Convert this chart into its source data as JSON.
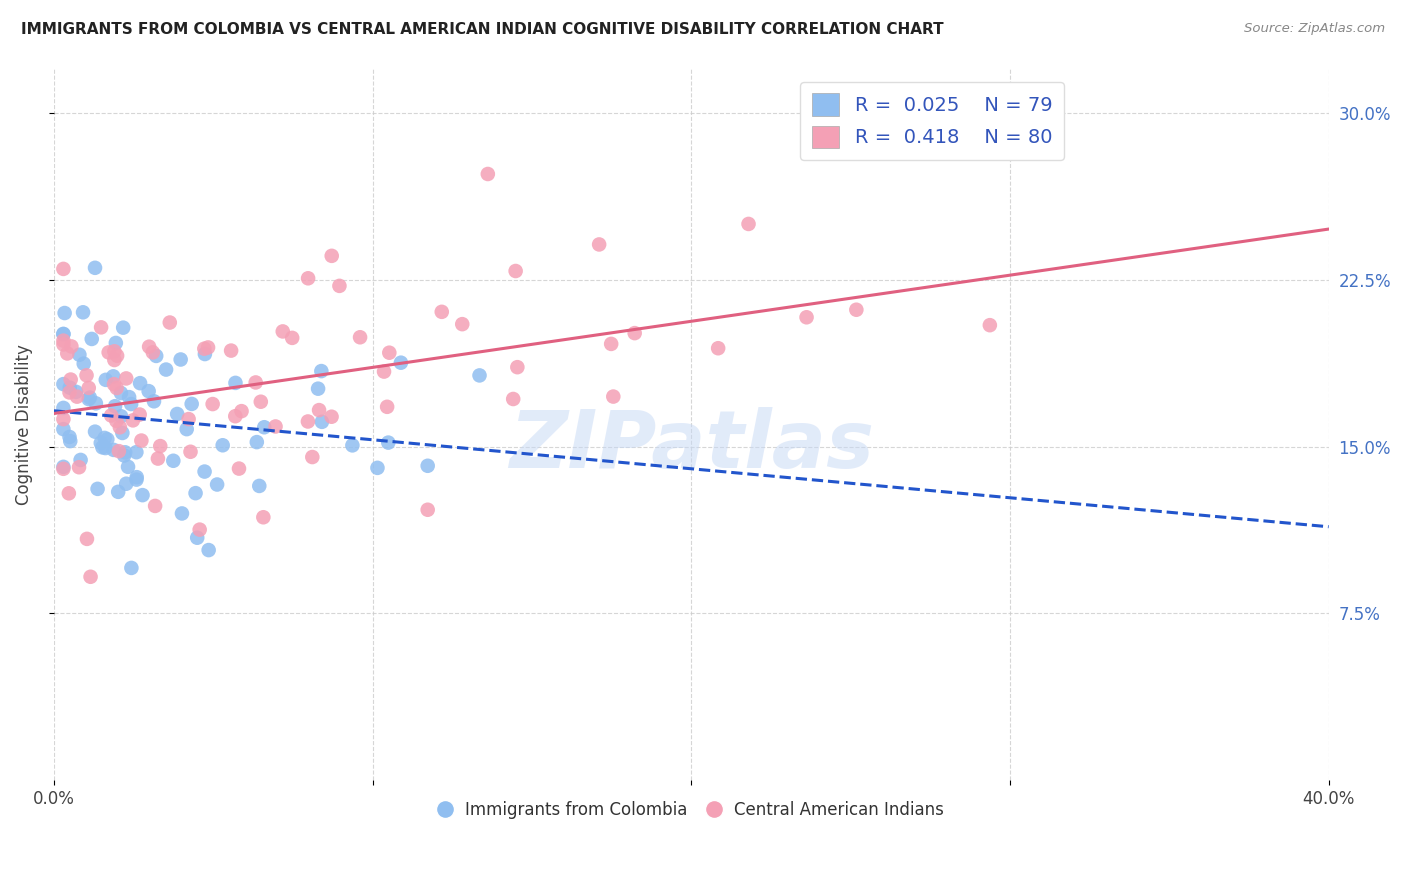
{
  "title": "IMMIGRANTS FROM COLOMBIA VS CENTRAL AMERICAN INDIAN COGNITIVE DISABILITY CORRELATION CHART",
  "source": "Source: ZipAtlas.com",
  "ylabel": "Cognitive Disability",
  "ytick_values": [
    0.075,
    0.15,
    0.225,
    0.3
  ],
  "ytick_labels": [
    "7.5%",
    "15.0%",
    "22.5%",
    "30.0%"
  ],
  "xtick_values": [
    0.0,
    0.1,
    0.2,
    0.3,
    0.4
  ],
  "xtick_labels": [
    "0.0%",
    "",
    "",
    "",
    "40.0%"
  ],
  "xlim": [
    0.0,
    0.4
  ],
  "ylim": [
    0.0,
    0.32
  ],
  "blue_r": 0.025,
  "blue_n": 79,
  "pink_r": 0.418,
  "pink_n": 80,
  "background_color": "#ffffff",
  "blue_color": "#90BEF0",
  "pink_color": "#F4A0B5",
  "blue_line_color": "#2255CC",
  "pink_line_color": "#E06080",
  "watermark_text": "ZIPatlas",
  "grid_color": "#CCCCCC",
  "right_tick_color": "#4472C4",
  "title_color": "#222222",
  "source_color": "#888888",
  "legend_label_color": "#3355BB"
}
